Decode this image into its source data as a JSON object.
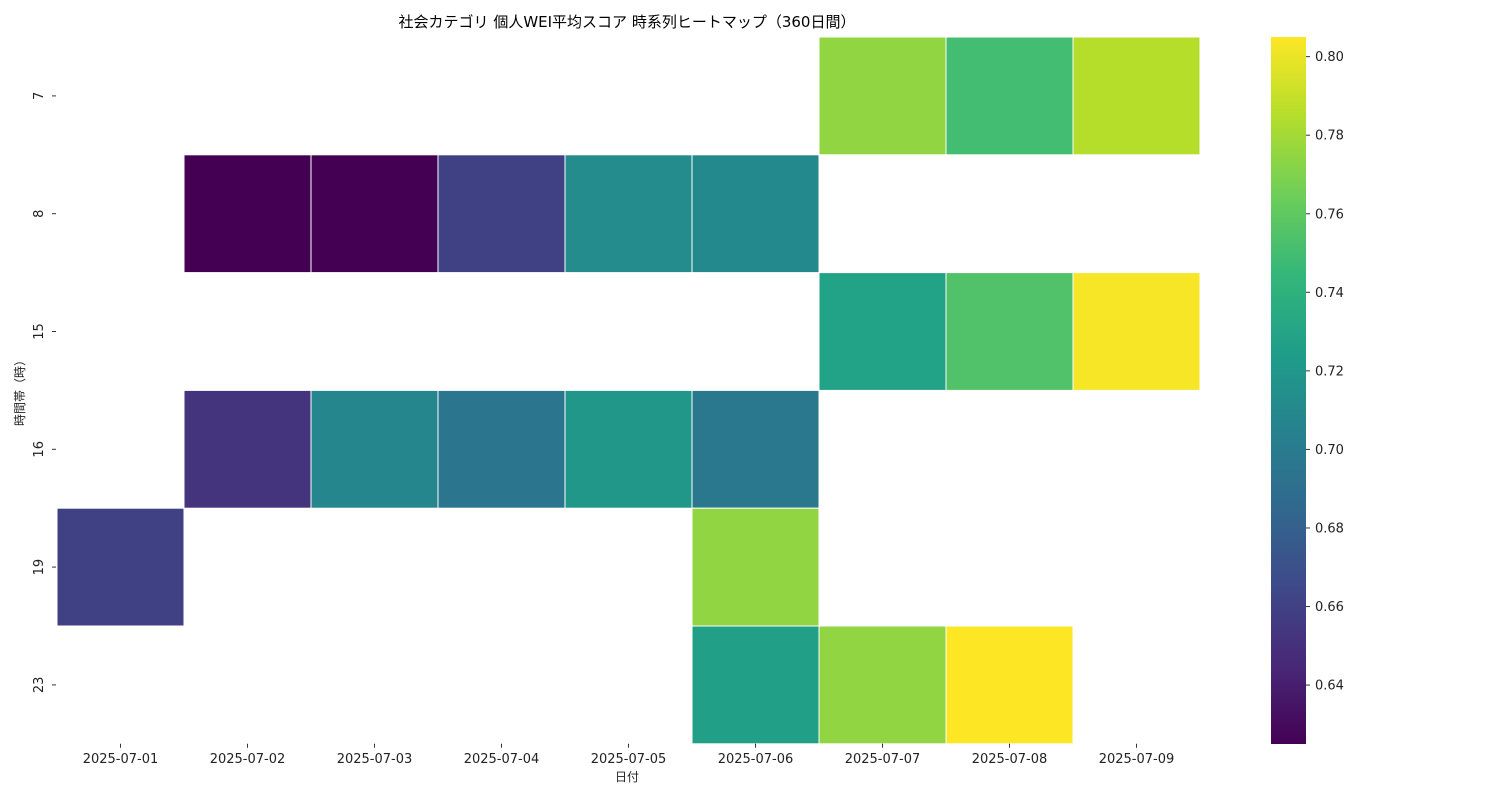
{
  "chart_data": {
    "type": "heatmap",
    "title": "社会カテゴリ 個人WEI平均スコア 時系列ヒートマップ（360日間）",
    "xlabel": "日付",
    "ylabel": "時間帯（時）",
    "x_categories": [
      "2025-07-01",
      "2025-07-02",
      "2025-07-03",
      "2025-07-04",
      "2025-07-05",
      "2025-07-06",
      "2025-07-07",
      "2025-07-08",
      "2025-07-09"
    ],
    "y_categories": [
      "7",
      "8",
      "15",
      "16",
      "19",
      "23"
    ],
    "values": [
      [
        null,
        null,
        null,
        null,
        null,
        null,
        0.775,
        0.75,
        0.785
      ],
      [
        null,
        0.625,
        0.625,
        0.66,
        0.712,
        0.71,
        null,
        null,
        null
      ],
      [
        null,
        null,
        null,
        null,
        null,
        null,
        0.728,
        0.755,
        0.803
      ],
      [
        null,
        0.652,
        0.708,
        0.695,
        0.72,
        0.697,
        null,
        null,
        null
      ],
      [
        0.66,
        null,
        null,
        null,
        null,
        0.775,
        null,
        null,
        null
      ],
      [
        null,
        null,
        null,
        null,
        null,
        0.727,
        0.775,
        0.805,
        null
      ]
    ],
    "colormap": "viridis",
    "colorbar": {
      "range": [
        0.625,
        0.805
      ],
      "ticks": [
        "0.64",
        "0.66",
        "0.68",
        "0.70",
        "0.72",
        "0.74",
        "0.76",
        "0.78",
        "0.80"
      ]
    },
    "missing_color": "#ffffff",
    "grid": false,
    "legend": "colorbar-right"
  }
}
